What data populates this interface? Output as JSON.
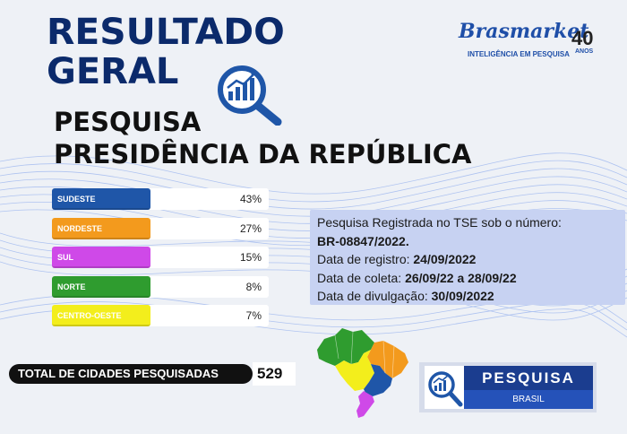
{
  "header": {
    "title_line1": "RESULTADO",
    "title_line2": "GERAL",
    "subtitle_line1": "PESQUISA",
    "subtitle_line2": "PRESIDÊNCIA DA REPÚBLICA"
  },
  "brand": {
    "name": "Brasmarket",
    "years": "40",
    "years_label": "ANOS",
    "tagline": "INTELIGÊNCIA EM PESQUISA"
  },
  "regions": [
    {
      "name": "SUDESTE",
      "percent_label": "43%",
      "percent": 43,
      "color": "#1f56a8"
    },
    {
      "name": "NORDESTE",
      "percent_label": "27%",
      "percent": 27,
      "color": "#f39a1d"
    },
    {
      "name": "SUL",
      "percent_label": "15%",
      "percent": 15,
      "color": "#cf49e8"
    },
    {
      "name": "NORTE",
      "percent_label": "8%",
      "percent": 8,
      "color": "#2f9c2f"
    },
    {
      "name": "CENTRO-OESTE",
      "percent_label": "7%",
      "percent": 7,
      "color": "#f3ee1c"
    }
  ],
  "registration": {
    "line1": "Pesquisa Registrada no TSE sob o número:",
    "number": "BR-08847/2022.",
    "registro_label": "Data de registro: ",
    "registro_value": "24/09/2022",
    "coleta_label": "Data de coleta: ",
    "coleta_value": "26/09/22 a 28/09/22",
    "divulgacao_label": "Data de divulgação: ",
    "divulgacao_value": "30/09/2022"
  },
  "total": {
    "label": "TOTAL DE CIDADES PESQUISADAS",
    "value": "529"
  },
  "badge": {
    "title": "PESQUISA",
    "subtitle": "BRASIL"
  },
  "colors": {
    "title_navy": "#0b2a6b",
    "brand_blue": "#1f4fa8",
    "info_box": "#c7d2f2"
  }
}
